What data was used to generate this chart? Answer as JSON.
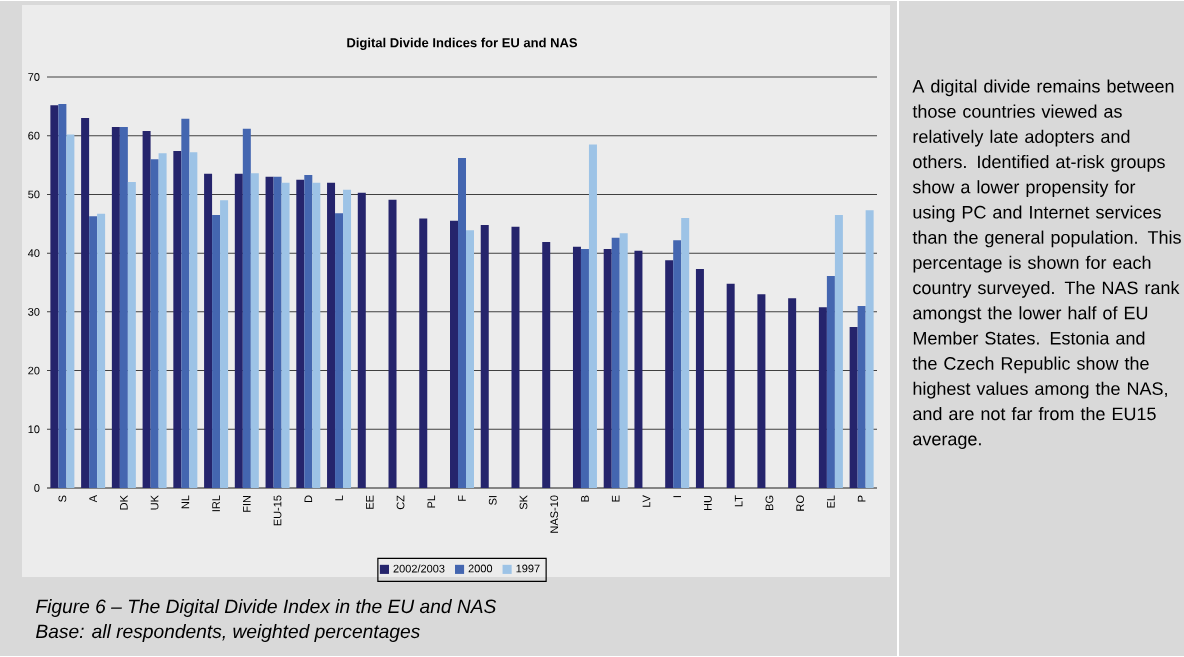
{
  "chart_data": {
    "type": "bar",
    "title": "Digital Divide Indices for EU and NAS",
    "categories": [
      "S",
      "A",
      "DK",
      "UK",
      "NL",
      "IRL",
      "FIN",
      "EU-15",
      "D",
      "L",
      "EE",
      "CZ",
      "PL",
      "F",
      "SI",
      "SK",
      "NAS-10",
      "B",
      "E",
      "LV",
      "I",
      "HU",
      "LT",
      "BG",
      "RO",
      "EL",
      "P"
    ],
    "series": [
      {
        "name": "2002/2003",
        "color": "#25246c",
        "values": [
          65.2,
          63.0,
          61.5,
          60.8,
          57.4,
          53.5,
          53.5,
          53.0,
          52.5,
          52.0,
          50.3,
          49.1,
          45.9,
          45.5,
          44.8,
          44.5,
          41.9,
          41.1,
          40.7,
          40.4,
          38.8,
          37.3,
          34.8,
          33.0,
          32.3,
          30.8,
          27.4
        ]
      },
      {
        "name": "2000",
        "color": "#4466b0",
        "values": [
          65.4,
          46.3,
          61.5,
          56.0,
          62.9,
          46.5,
          61.2,
          53.0,
          53.3,
          46.8,
          null,
          null,
          null,
          56.2,
          null,
          null,
          null,
          40.7,
          42.6,
          null,
          42.2,
          null,
          null,
          null,
          null,
          36.1,
          31.0
        ]
      },
      {
        "name": "1997",
        "color": "#9dc3e6",
        "values": [
          60.2,
          46.7,
          52.1,
          57.0,
          57.2,
          49.0,
          53.6,
          52.0,
          52.0,
          50.8,
          null,
          null,
          null,
          43.9,
          null,
          null,
          null,
          58.5,
          43.4,
          null,
          46.0,
          null,
          null,
          null,
          null,
          46.5,
          47.3
        ]
      }
    ],
    "ylim": [
      0,
      70
    ],
    "yticks": [
      0,
      10,
      20,
      30,
      40,
      50,
      60,
      70
    ],
    "grid": "y",
    "legend": "bottom",
    "annotations": [
      "A digital divide remains between those countries viewed as relatively late adopters and others. Identified at-risk groups show a lower propensity for using PC and Internet services than the general population. This percentage is shown for each country surveyed. The NAS rank amongst the lower half of EU Member States. Estonia and the Czech Republic show the highest values among the NAS, and are not far from the EU15 average.",
      "Figure 6 – The Digital Divide Index in the EU and NAS",
      "Base: all respondents, weighted percentages"
    ]
  }
}
